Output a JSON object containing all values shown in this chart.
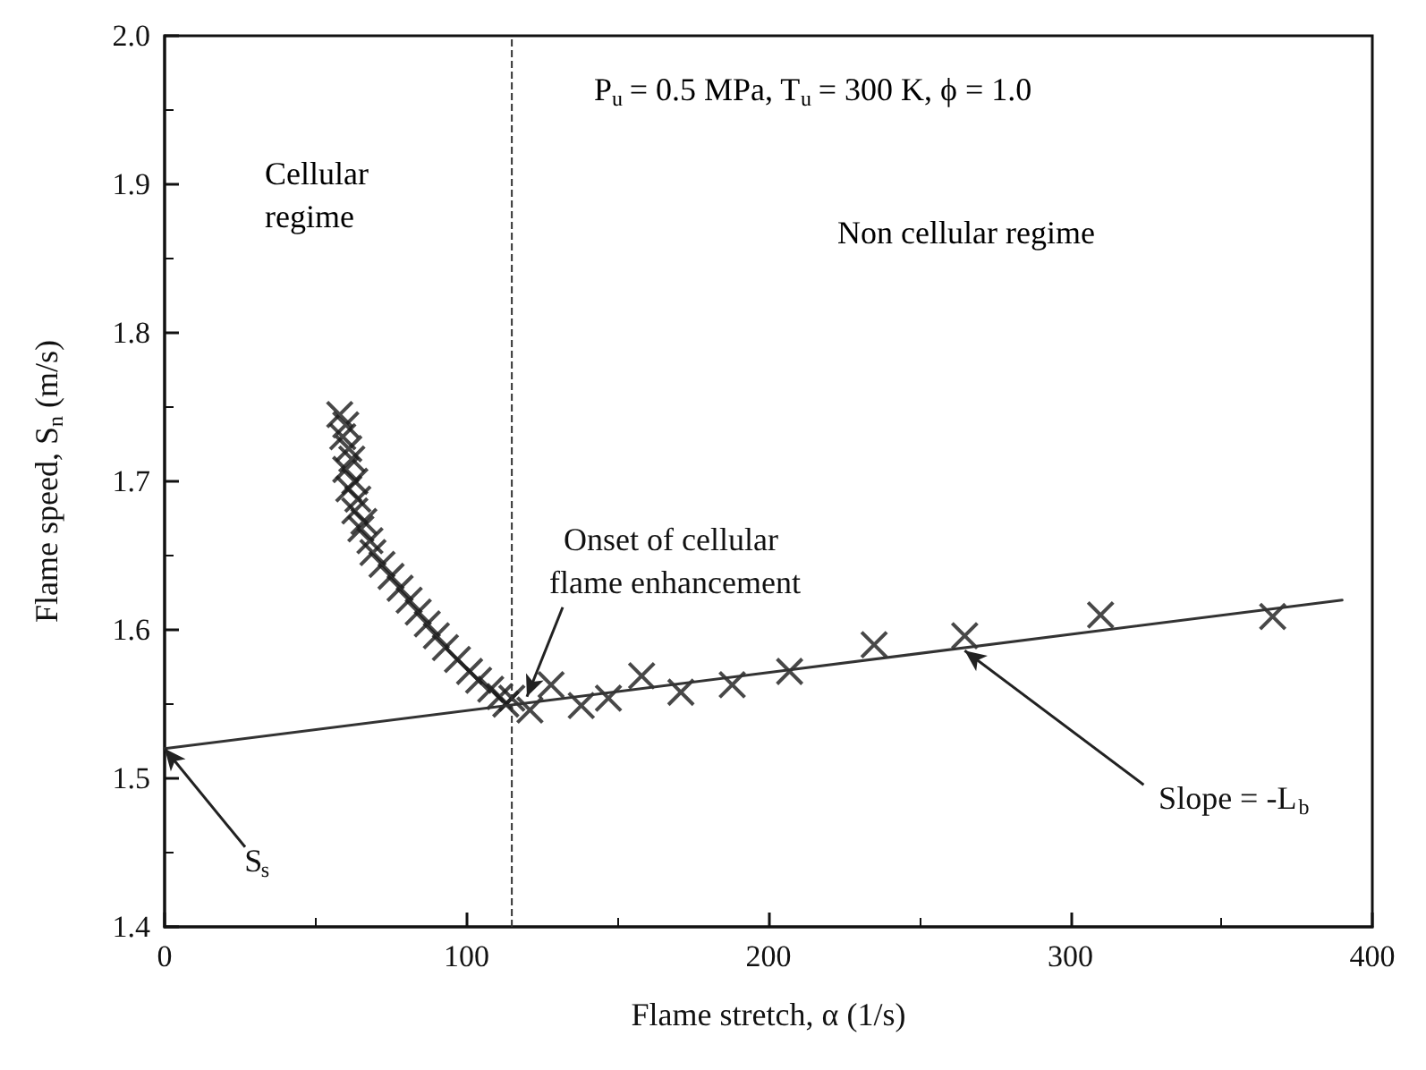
{
  "chart_data": {
    "type": "scatter",
    "xlabel": "Flame stretch, α (1/s)",
    "ylabel": "Flame speed, S$_{n}$ (m/s)",
    "xlim": [
      0,
      400
    ],
    "xticks": [
      0,
      100,
      200,
      300,
      400
    ],
    "ylim": [
      1.4,
      2.0
    ],
    "yticks": [
      1.4,
      1.5,
      1.6,
      1.7,
      1.8,
      1.9,
      {
        "value": 2,
        "label": "2.0"
      }
    ],
    "grid": false,
    "marker": "cross",
    "series": [
      {
        "color": "#1a1a1a",
        "x": [
          58,
          60,
          59,
          61,
          62,
          60,
          63,
          61,
          64,
          63,
          66,
          65,
          68,
          69,
          72,
          75,
          78,
          81,
          84,
          87,
          90,
          93,
          97,
          101,
          104,
          108,
          111,
          113,
          115,
          121,
          128,
          138,
          147,
          158,
          171,
          188,
          207,
          235,
          265,
          310,
          367
        ],
        "values": [
          1.745,
          1.738,
          1.73,
          1.722,
          1.715,
          1.708,
          1.7,
          1.695,
          1.688,
          1.68,
          1.673,
          1.668,
          1.66,
          1.652,
          1.644,
          1.636,
          1.628,
          1.62,
          1.612,
          1.604,
          1.596,
          1.588,
          1.58,
          1.572,
          1.566,
          1.56,
          1.555,
          1.55,
          1.554,
          1.546,
          1.563,
          1.549,
          1.554,
          1.569,
          1.558,
          1.563,
          1.572,
          1.59,
          1.596,
          1.61,
          1.609
        ]
      },
      {
        "type": "line",
        "color": "#333333",
        "marker": "none",
        "x": [
          0,
          390
        ],
        "values": [
          1.52,
          1.62
        ]
      }
    ],
    "ref_lines": [
      {
        "axis": "x",
        "value": 115,
        "line_style": "dashed",
        "color": "#333333"
      }
    ],
    "annotations": [
      "P$_{u}$ = 0.5 MPa, T$_{u}$ = 300 K, ϕ = 1.0",
      "Cellular regime",
      "Non cellular regime",
      {
        "text": "Onset of cellular flame enhancement",
        "x": 120,
        "y": 1.555
      },
      {
        "text": "Slope = -L$_{b}$",
        "x": 265,
        "y": 1.586
      },
      {
        "text": "S$_{s}$",
        "x": 0,
        "y": 1.52
      }
    ]
  }
}
